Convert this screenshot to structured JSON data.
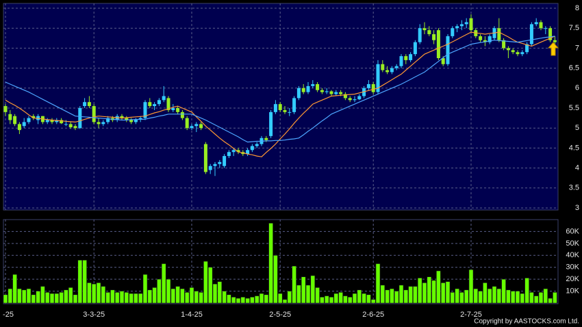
{
  "chart_data": [
    {
      "type": "candlestick",
      "categories": [
        "-25",
        null,
        null,
        null,
        null,
        null,
        null,
        null,
        null,
        null,
        null,
        null,
        null,
        null,
        null,
        null,
        null,
        null,
        null,
        "3-3-25",
        null,
        null,
        null,
        null,
        null,
        null,
        null,
        null,
        null,
        null,
        null,
        null,
        null,
        null,
        null,
        null,
        null,
        null,
        null,
        null,
        "1-4-25",
        null,
        null,
        null,
        null,
        null,
        null,
        null,
        null,
        null,
        null,
        null,
        null,
        null,
        null,
        null,
        null,
        null,
        null,
        "2-5-25",
        null,
        null,
        null,
        null,
        null,
        null,
        null,
        null,
        null,
        null,
        null,
        null,
        null,
        null,
        null,
        null,
        null,
        null,
        null,
        "2-6-25",
        null,
        null,
        null,
        null,
        null,
        null,
        null,
        null,
        null,
        null,
        null,
        null,
        null,
        null,
        null,
        null,
        null,
        null,
        null,
        null,
        "2-7-25",
        null,
        null,
        null,
        null,
        null,
        null,
        null,
        null,
        null,
        null,
        null,
        null,
        null,
        null,
        null,
        null,
        null,
        null
      ],
      "open": [
        5.55,
        5.35,
        5.3,
        5.1,
        5.05,
        5.15,
        5.3,
        5.2,
        5.3,
        5.15,
        5.2,
        5.15,
        5.2,
        5.1,
        5.1,
        5.05,
        5.0,
        5.55,
        5.65,
        5.55,
        5.15,
        5.1,
        5.15,
        5.25,
        5.2,
        5.3,
        5.25,
        5.2,
        5.15,
        5.22,
        5.25,
        5.65,
        5.55,
        5.6,
        5.7,
        5.75,
        5.45,
        5.5,
        5.4,
        5.25,
        5.0,
        5.05,
        5.1,
        4.6,
        3.95,
        4.05,
        4.1,
        4.05,
        4.3,
        4.4,
        4.45,
        4.4,
        4.35,
        4.45,
        4.55,
        4.6,
        4.75,
        4.8,
        5.4,
        5.6,
        5.45,
        5.4,
        5.4,
        5.75,
        6.0,
        5.9,
        6.05,
        6.1,
        5.95,
        5.9,
        5.92,
        5.85,
        5.9,
        5.85,
        5.75,
        5.7,
        5.72,
        5.8,
        6.0,
        6.1,
        5.9,
        6.6,
        6.45,
        6.4,
        6.5,
        6.55,
        6.8,
        6.7,
        6.85,
        7.15,
        7.5,
        7.45,
        7.35,
        7.45,
        6.75,
        6.6,
        7.3,
        7.5,
        7.55,
        7.6,
        7.75,
        7.45,
        7.3,
        7.2,
        7.15,
        7.25,
        7.5,
        7.2,
        7.0,
        6.95,
        6.9,
        6.85,
        6.9,
        7.1,
        7.6,
        7.65,
        7.5,
        7.5,
        7.2
      ],
      "high": [
        5.6,
        5.45,
        5.35,
        5.15,
        5.25,
        5.3,
        5.35,
        5.35,
        5.3,
        5.25,
        5.25,
        5.25,
        5.25,
        5.2,
        5.15,
        5.1,
        5.55,
        5.75,
        5.8,
        5.6,
        5.25,
        5.2,
        5.3,
        5.3,
        5.35,
        5.35,
        5.3,
        5.25,
        5.25,
        5.3,
        5.7,
        5.75,
        5.65,
        5.75,
        6.05,
        5.8,
        5.6,
        5.55,
        5.45,
        5.3,
        5.1,
        5.15,
        5.15,
        4.65,
        4.1,
        4.15,
        4.2,
        4.35,
        4.45,
        4.5,
        4.5,
        4.45,
        4.5,
        4.6,
        4.65,
        4.8,
        4.8,
        5.45,
        5.7,
        5.65,
        5.55,
        5.5,
        5.8,
        6.05,
        6.1,
        6.15,
        6.2,
        6.15,
        6.0,
        6.0,
        5.95,
        5.95,
        5.95,
        5.9,
        5.8,
        5.8,
        5.85,
        6.05,
        6.2,
        6.15,
        6.7,
        6.7,
        6.55,
        6.55,
        6.6,
        6.85,
        6.85,
        6.9,
        7.2,
        7.6,
        7.65,
        7.55,
        7.45,
        7.5,
        6.8,
        7.35,
        7.55,
        7.6,
        7.7,
        7.75,
        7.85,
        7.5,
        7.35,
        7.3,
        7.35,
        7.55,
        7.75,
        7.25,
        7.05,
        7.0,
        6.95,
        6.95,
        7.15,
        7.65,
        7.75,
        7.7,
        7.55,
        7.55,
        7.3
      ],
      "low": [
        5.3,
        5.1,
        5.05,
        4.85,
        5.0,
        5.1,
        5.2,
        5.1,
        5.1,
        5.1,
        5.1,
        5.1,
        5.1,
        5.05,
        4.98,
        4.95,
        4.98,
        5.5,
        5.5,
        5.1,
        5.0,
        5.05,
        5.1,
        5.15,
        5.15,
        5.2,
        5.15,
        5.1,
        5.1,
        5.15,
        5.2,
        5.5,
        5.45,
        5.55,
        5.65,
        5.4,
        5.4,
        5.35,
        5.2,
        4.95,
        4.95,
        4.9,
        4.95,
        3.85,
        3.85,
        3.8,
        4.0,
        4.0,
        4.25,
        4.3,
        4.35,
        4.3,
        4.3,
        4.4,
        4.5,
        4.55,
        4.65,
        4.75,
        5.35,
        5.4,
        5.35,
        5.3,
        5.35,
        5.7,
        5.85,
        5.85,
        6.0,
        5.9,
        5.85,
        5.85,
        5.8,
        5.8,
        5.8,
        5.7,
        5.65,
        5.65,
        5.7,
        5.75,
        5.95,
        5.85,
        5.85,
        6.4,
        6.35,
        6.35,
        6.45,
        6.5,
        6.6,
        6.65,
        6.8,
        7.1,
        7.35,
        7.3,
        7.1,
        6.7,
        6.55,
        6.55,
        7.25,
        7.4,
        7.45,
        7.5,
        7.4,
        7.25,
        7.15,
        7.05,
        7.1,
        7.2,
        7.15,
        6.95,
        6.75,
        6.85,
        6.8,
        6.8,
        6.85,
        7.05,
        7.55,
        7.45,
        7.35,
        7.15,
        7.05
      ],
      "close": [
        5.4,
        5.2,
        5.1,
        4.95,
        5.15,
        5.25,
        5.25,
        5.3,
        5.15,
        5.2,
        5.15,
        5.2,
        5.12,
        5.1,
        5.02,
        5.0,
        5.5,
        5.65,
        5.55,
        5.15,
        5.1,
        5.15,
        5.25,
        5.2,
        5.3,
        5.25,
        5.2,
        5.15,
        5.22,
        5.25,
        5.65,
        5.55,
        5.6,
        5.7,
        5.8,
        5.45,
        5.5,
        5.4,
        5.25,
        5.0,
        5.05,
        5.1,
        5.0,
        3.9,
        4.05,
        4.1,
        4.15,
        4.3,
        4.4,
        4.45,
        4.4,
        4.35,
        4.45,
        4.55,
        4.6,
        4.75,
        4.7,
        5.4,
        5.6,
        5.45,
        5.4,
        5.4,
        5.75,
        6.0,
        5.9,
        6.05,
        6.1,
        5.95,
        5.9,
        5.92,
        5.85,
        5.9,
        5.85,
        5.75,
        5.7,
        5.72,
        5.8,
        6.0,
        6.1,
        5.9,
        6.6,
        6.45,
        6.4,
        6.5,
        6.55,
        6.8,
        6.7,
        6.85,
        7.15,
        7.5,
        7.45,
        7.35,
        7.2,
        6.75,
        6.6,
        7.3,
        7.5,
        7.55,
        7.6,
        7.65,
        7.45,
        7.3,
        7.2,
        7.15,
        7.3,
        7.5,
        7.2,
        7.0,
        6.95,
        6.9,
        6.85,
        6.9,
        7.1,
        7.6,
        7.65,
        7.5,
        7.5,
        7.2,
        7.15
      ],
      "up_color": "#33ccff",
      "down_color": "#99ee22",
      "series": [
        {
          "color": "#ff9933",
          "values": [
            5.7,
            5.63,
            5.57,
            5.5,
            5.42,
            5.33,
            5.25,
            5.24,
            5.23,
            5.21,
            5.2,
            5.19,
            5.18,
            5.17,
            5.16,
            5.15,
            5.18,
            5.22,
            5.25,
            5.28,
            5.3,
            5.29,
            5.28,
            5.27,
            5.26,
            5.25,
            5.26,
            5.27,
            5.28,
            5.29,
            5.3,
            5.34,
            5.38,
            5.41,
            5.45,
            5.48,
            5.52,
            5.55,
            5.5,
            5.45,
            5.4,
            5.28,
            5.17,
            5.05,
            4.95,
            4.85,
            4.75,
            4.66,
            4.58,
            4.49,
            4.4,
            4.38,
            4.35,
            4.33,
            4.3,
            4.28,
            4.39,
            4.49,
            4.6,
            4.73,
            4.85,
            4.98,
            5.12,
            5.25,
            5.37,
            5.48,
            5.6,
            5.65,
            5.7,
            5.75,
            5.8,
            5.81,
            5.82,
            5.83,
            5.84,
            5.85,
            5.88,
            5.91,
            5.94,
            5.97,
            6.0,
            6.07,
            6.14,
            6.21,
            6.28,
            6.35,
            6.45,
            6.55,
            6.65,
            6.75,
            6.85,
            6.9,
            6.95,
            7.0,
            7.05,
            7.1,
            7.16,
            7.22,
            7.28,
            7.34,
            7.4,
            7.38,
            7.37,
            7.35,
            7.37,
            7.38,
            7.4,
            7.34,
            7.28,
            7.21,
            7.15,
            7.12,
            7.08,
            7.05,
            7.1,
            7.15,
            7.2,
            7.25,
            7.3
          ]
        },
        {
          "color": "#4da6ff",
          "values": [
            6.15,
            6.1,
            6.05,
            6.0,
            5.95,
            5.9,
            5.84,
            5.78,
            5.72,
            5.66,
            5.6,
            5.54,
            5.48,
            5.42,
            5.36,
            5.3,
            5.29,
            5.28,
            5.27,
            5.26,
            5.25,
            5.24,
            5.23,
            5.22,
            5.21,
            5.2,
            5.2,
            5.21,
            5.21,
            5.22,
            5.22,
            5.25,
            5.27,
            5.3,
            5.32,
            5.35,
            5.35,
            5.35,
            5.35,
            5.35,
            5.35,
            5.3,
            5.25,
            5.2,
            5.14,
            5.08,
            5.02,
            4.96,
            4.9,
            4.84,
            4.78,
            4.71,
            4.65,
            4.66,
            4.67,
            4.67,
            4.68,
            4.68,
            4.69,
            4.69,
            4.7,
            4.72,
            4.73,
            4.75,
            4.83,
            4.92,
            5.0,
            5.09,
            5.18,
            5.26,
            5.35,
            5.4,
            5.45,
            5.5,
            5.55,
            5.6,
            5.65,
            5.7,
            5.75,
            5.8,
            5.85,
            5.9,
            5.95,
            6.0,
            6.05,
            6.1,
            6.16,
            6.22,
            6.28,
            6.34,
            6.4,
            6.49,
            6.58,
            6.67,
            6.76,
            6.85,
            6.9,
            6.95,
            7.0,
            7.05,
            7.1,
            7.12,
            7.14,
            7.16,
            7.18,
            7.2,
            7.19,
            7.18,
            7.17,
            7.16,
            7.15,
            7.17,
            7.19,
            7.21,
            7.23,
            7.25,
            7.27,
            7.28,
            7.3
          ]
        }
      ],
      "ylim": [
        3,
        8
      ],
      "yticks": [
        3,
        3.5,
        4,
        4.5,
        5,
        5.5,
        6,
        6.5,
        7,
        7.5,
        8
      ],
      "grid": true
    },
    {
      "type": "bar",
      "color": "#66ff00",
      "values": [
        7000,
        12000,
        24000,
        12000,
        11000,
        12000,
        7000,
        10000,
        14000,
        9000,
        8000,
        8000,
        9000,
        11000,
        13000,
        7000,
        36000,
        36000,
        17000,
        16000,
        17000,
        14000,
        9000,
        11000,
        9000,
        10000,
        9000,
        8000,
        8000,
        8000,
        24000,
        11000,
        13000,
        20000,
        33000,
        20000,
        12000,
        14000,
        12000,
        9000,
        13000,
        10000,
        9000,
        35000,
        30000,
        16000,
        18000,
        10000,
        7000,
        5000,
        4000,
        5000,
        4000,
        5000,
        6000,
        8000,
        7000,
        67000,
        40000,
        8000,
        3000,
        10000,
        31000,
        15000,
        22000,
        15000,
        23000,
        13000,
        5000,
        6000,
        5000,
        8000,
        9000,
        6000,
        5000,
        8000,
        11000,
        8000,
        7000,
        3000,
        33000,
        15000,
        11000,
        12000,
        10000,
        15000,
        11000,
        14000,
        14000,
        21000,
        17000,
        22000,
        19000,
        27000,
        17000,
        18000,
        9000,
        12000,
        9000,
        11000,
        28000,
        12000,
        10000,
        17000,
        12000,
        14000,
        12000,
        20000,
        11000,
        10000,
        10000,
        8000,
        21000,
        9000,
        6000,
        9000,
        12000,
        4000,
        9000
      ],
      "ylim": [
        0,
        70000
      ],
      "yticks": [
        {
          "value": 10000,
          "label": "10K"
        },
        {
          "value": 20000,
          "label": "20K"
        },
        {
          "value": 30000,
          "label": "30K"
        },
        {
          "value": 40000,
          "label": "40K"
        },
        {
          "value": 50000,
          "label": "50K"
        },
        {
          "value": 60000,
          "label": "60K"
        }
      ],
      "grid": true,
      "source": "Copyright by AASTOCKS.com Ltd."
    }
  ]
}
